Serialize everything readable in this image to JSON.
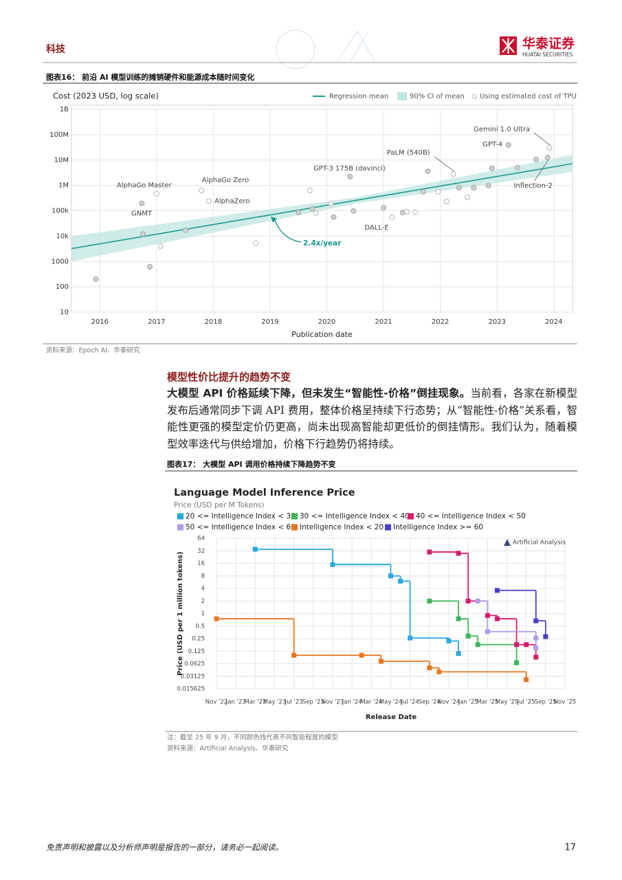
{
  "header": {
    "section": "科技",
    "brand": "华泰证券",
    "brand_en": "HUATAI SECURITIES"
  },
  "figure16": {
    "caption": "图表16：  前沿 AI 模型训练的摊销硬件和能源成本随时间变化",
    "source": "资料来源：Epoch AI、华泰研究"
  },
  "chart_data": [
    {
      "type": "scatter",
      "log_scale": true,
      "grid": true,
      "ylabel": "Cost (2023 USD, log scale)",
      "xlabel": "Publication date",
      "xlim": [
        2015.5,
        2024.33
      ],
      "xticks": [
        2016,
        2017,
        2018,
        2019,
        2020,
        2021,
        2022,
        2023,
        2024
      ],
      "ylim": [
        10,
        1000000000
      ],
      "yticks": [
        10,
        100,
        1000,
        {
          "value": 10000,
          "label": "10k"
        },
        {
          "value": 100000,
          "label": "100k"
        },
        {
          "value": 1000000,
          "label": "1M"
        },
        {
          "value": 10000000,
          "label": "10M"
        },
        {
          "value": 100000000,
          "label": "100M"
        },
        {
          "value": 1000000000,
          "label": "1B"
        }
      ],
      "x": [
        2015.93,
        2016.74,
        2016.76,
        2016.88,
        2017.0,
        2017.07,
        2017.51,
        2017.79,
        2017.92,
        2018.75,
        2019.5,
        2019.7,
        2019.74,
        2019.81,
        2020.07,
        2020.12,
        2020.41,
        2020.47,
        2021.0,
        2021.15,
        2021.34,
        2021.41,
        2021.56,
        2021.7,
        2021.78,
        2021.96,
        2022.11,
        2022.23,
        2022.33,
        2022.48,
        2022.59,
        2022.85,
        2022.91,
        2023.2,
        2023.36,
        2023.69,
        2023.89,
        2023.92
      ],
      "values": [
        200,
        195000,
        12000,
        620,
        470000,
        4000,
        17000,
        630000,
        240000,
        5200,
        85000,
        630000,
        118000,
        82000,
        195000,
        56000,
        2200000,
        98000,
        132000,
        56000,
        85000,
        91000,
        85000,
        560000,
        3600000,
        560000,
        234000,
        2800000,
        810000,
        340000,
        810000,
        980000,
        4700000,
        39000000,
        5000000,
        10500000,
        12600000,
        30000000
      ],
      "tpu_estimate": [
        false,
        false,
        false,
        false,
        true,
        true,
        false,
        true,
        true,
        true,
        false,
        true,
        false,
        true,
        true,
        false,
        false,
        false,
        false,
        true,
        false,
        true,
        true,
        false,
        false,
        true,
        true,
        true,
        false,
        true,
        false,
        false,
        false,
        false,
        false,
        false,
        false,
        true
      ],
      "point_labels": [
        null,
        null,
        "GNMT",
        null,
        "AlphaGo Master",
        null,
        null,
        "AlphaGo Zero",
        "AlphaZero",
        null,
        null,
        null,
        null,
        null,
        null,
        null,
        "GPT-3 175B (davinci)",
        null,
        "DALL-E",
        null,
        null,
        null,
        null,
        null,
        null,
        null,
        null,
        "PaLM (540B)",
        null,
        null,
        null,
        null,
        null,
        "GPT-4",
        null,
        null,
        "Inflection-2",
        "Gemini 1.0 Ultra"
      ],
      "point_color": "#cfcfcf",
      "tpu_series_name": "Using estimated cost of TPU",
      "regression": {
        "name": "Regression mean",
        "color": "#1a9a8f",
        "x": [
          2015.5,
          2024.33
        ],
        "values": [
          3200,
          7200000
        ]
      },
      "ci": {
        "name": "90% CI of mean",
        "color": "#bfe6e2",
        "x": [
          2015.5,
          2020.5,
          2024.33
        ],
        "lower": [
          1000,
          190000,
          3400000
        ],
        "upper": [
          10000,
          330000,
          16000000
        ]
      },
      "trend_label": "2.4x/year"
    },
    {
      "type": "step",
      "log_scale": true,
      "grid": true,
      "title": "Language Model Inference Price",
      "subtitle": "Price (USD per M Tokens)",
      "ylabel": "Price (USD per 1 million tokens)",
      "xlabel": "Release Date",
      "watermark": "Artificial Analysis",
      "xlim": [
        "2022-11",
        "2025-11"
      ],
      "xticks": [
        {
          "value": "2022-11",
          "label": "Nov '22"
        },
        {
          "value": "2023-01",
          "label": "Jan '23"
        },
        {
          "value": "2023-03",
          "label": "Mar '23"
        },
        {
          "value": "2023-05",
          "label": "May '23"
        },
        {
          "value": "2023-07",
          "label": "Jul '23"
        },
        {
          "value": "2023-09",
          "label": "Sep '23"
        },
        {
          "value": "2023-11",
          "label": "Nov '23"
        },
        {
          "value": "2024-01",
          "label": "Jan '24"
        },
        {
          "value": "2024-03",
          "label": "Mar '24"
        },
        {
          "value": "2024-05",
          "label": "May '24"
        },
        {
          "value": "2024-07",
          "label": "Jul '24"
        },
        {
          "value": "2024-09",
          "label": "Sep '24"
        },
        {
          "value": "2024-11",
          "label": "Nov '24"
        },
        {
          "value": "2025-01",
          "label": "Jan '25"
        },
        {
          "value": "2025-03",
          "label": "Mar '25"
        },
        {
          "value": "2025-05",
          "label": "May '25"
        },
        {
          "value": "2025-07",
          "label": "Jul '25"
        },
        {
          "value": "2025-09",
          "label": "Sep '25"
        },
        {
          "value": "2025-11",
          "label": "Nov '25"
        }
      ],
      "ylim": [
        0.015625,
        64
      ],
      "yticks": [
        64,
        32,
        16,
        8,
        4,
        2,
        1,
        0.5,
        0.25,
        0.125,
        0.0625,
        0.03125,
        0.015625
      ],
      "series": [
        {
          "name": "20 <= Intelligence Index < 30",
          "color": "#29a8e0",
          "x": [
            "2023-03",
            "2023-11",
            "2024-05",
            "2024-06",
            "2024-07",
            "2024-11",
            "2024-12"
          ],
          "values": [
            35,
            15,
            8,
            6,
            0.26,
            0.22,
            0.11
          ]
        },
        {
          "name": "30 <= Intelligence Index < 40",
          "color": "#3cb55a",
          "x": [
            "2024-09",
            "2024-12",
            "2025-01",
            "2025-02",
            "2025-06"
          ],
          "values": [
            2,
            0.75,
            0.29,
            0.18,
            0.066
          ]
        },
        {
          "name": "40 <= Intelligence Index < 50",
          "color": "#d81b6a",
          "x": [
            "2024-09",
            "2024-12",
            "2025-01",
            "2025-03",
            "2025-04",
            "2025-06",
            "2025-07",
            "2025-08"
          ],
          "values": [
            30,
            28,
            2,
            0.9,
            0.75,
            0.18,
            0.18,
            0.09
          ]
        },
        {
          "name": "50 <= Intelligence Index < 60",
          "color": "#b19ce8",
          "x": [
            "2025-02",
            "2025-03",
            "2025-08",
            "2025-08"
          ],
          "values": [
            2,
            0.37,
            0.26,
            0.15
          ]
        },
        {
          "name": "Intelligence Index < 20",
          "color": "#e8761e",
          "x": [
            "2022-11",
            "2023-07",
            "2024-02",
            "2024-04",
            "2024-09",
            "2024-10",
            "2025-07"
          ],
          "values": [
            0.75,
            0.1,
            0.1,
            0.072,
            0.05,
            0.04,
            0.026
          ]
        },
        {
          "name": "Intelligence Index >= 60",
          "color": "#4a3fc7",
          "x": [
            "2025-04",
            "2025-08",
            "2025-09"
          ],
          "values": [
            3.6,
            0.67,
            0.28
          ]
        }
      ]
    }
  ],
  "body": {
    "heading": "模型性价比提升的趋势不变",
    "lead": "大模型 API 价格延续下降，但未发生“智能性-价格”倒挂现象。",
    "text": "当前看，各家在新模型发布后通常同步下调 API 费用，整体价格呈持续下行态势；从“智能性-价格”关系看，智能性更强的模型定价仍更高，尚未出现高智能却更低价的倒挂情形。我们认为，随着模型效率迭代与供给增加，价格下行趋势仍将持续。"
  },
  "figure17": {
    "caption": "图表17：  大模型 API 调用价格持续下降趋势不变",
    "note": "注：截至 25 年 9 月，不同颜色线代表不同智能程度的模型",
    "source": "资料来源：Artificial Analysis、华泰研究"
  },
  "footer": {
    "disclaimer": "免责声明和披露以及分析师声明是报告的一部分，请务必一起阅读。",
    "page": 17
  }
}
